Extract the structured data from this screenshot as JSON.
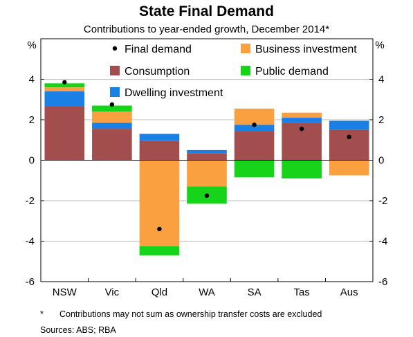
{
  "chart_data": {
    "type": "bar",
    "stacked": true,
    "title": "State Final Demand",
    "subtitle": "Contributions to year-ended growth, December 2014*",
    "ylabel_left": "%",
    "ylabel_right": "%",
    "ylim": [
      -6,
      6
    ],
    "yticks": [
      -6,
      -4,
      -2,
      0,
      2,
      4
    ],
    "grid": true,
    "legend_position": "top",
    "categories": [
      "NSW",
      "Vic",
      "Qld",
      "WA",
      "SA",
      "Tas",
      "Aus"
    ],
    "series": [
      {
        "name": "Consumption",
        "color": "#a34e4e",
        "values": [
          2.65,
          1.55,
          0.95,
          0.35,
          1.45,
          1.85,
          1.5
        ]
      },
      {
        "name": "Dwelling investment",
        "color": "#1a80e6",
        "values": [
          0.75,
          0.3,
          0.35,
          0.15,
          0.3,
          0.25,
          0.45
        ]
      },
      {
        "name": "Business investment",
        "color": "#fba040",
        "values": [
          0.2,
          0.55,
          -4.25,
          -1.3,
          0.8,
          0.25,
          -0.75
        ]
      },
      {
        "name": "Public demand",
        "color": "#17d41b",
        "values": [
          0.2,
          0.3,
          -0.45,
          -0.85,
          -0.85,
          -0.9,
          0.0
        ]
      }
    ],
    "final_demand": {
      "name": "Final demand",
      "color": "#000000",
      "values": [
        3.85,
        2.75,
        -3.4,
        -1.75,
        1.75,
        1.55,
        1.15
      ]
    }
  },
  "legend": {
    "final_demand": "Final demand",
    "consumption": "Consumption",
    "dwelling": "Dwelling investment",
    "business": "Business investment",
    "public": "Public demand"
  },
  "footnote": {
    "marker": "*",
    "text": "Contributions may not sum as ownership transfer costs are excluded",
    "sources": "Sources:   ABS; RBA"
  }
}
